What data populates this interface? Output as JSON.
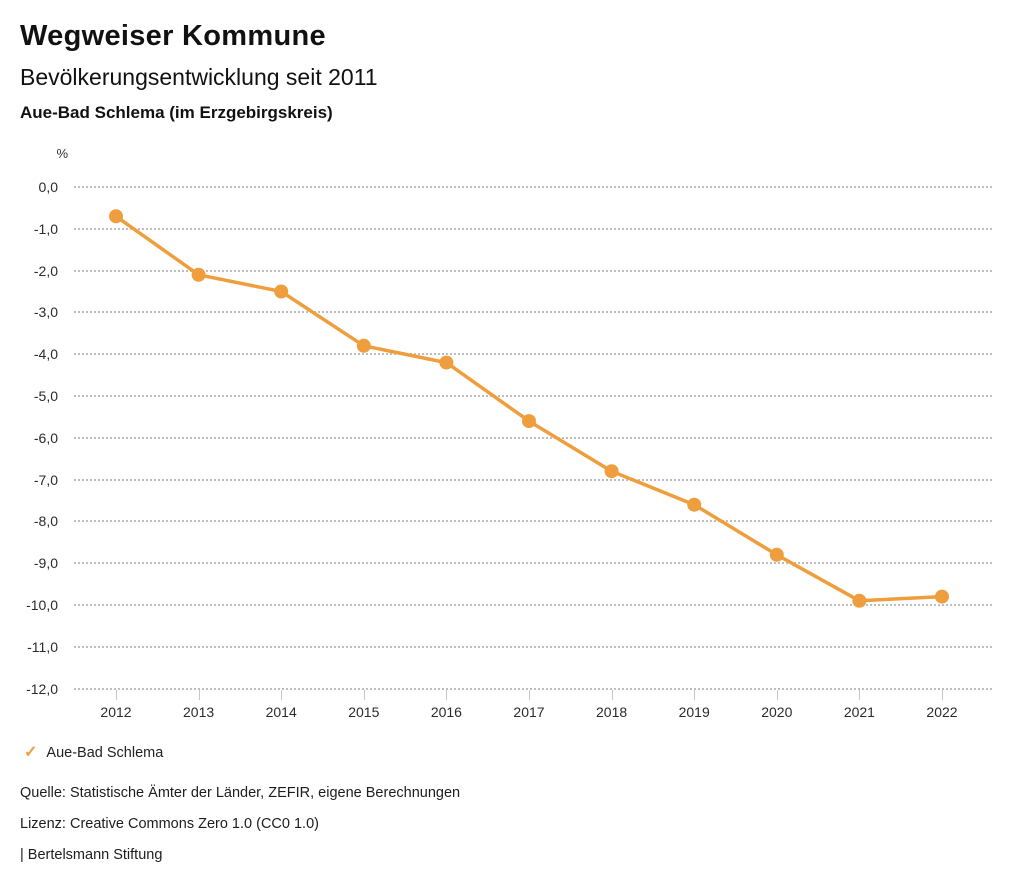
{
  "header": {
    "title": "Wegweiser Kommune",
    "subtitle": "Bevölkerungsentwicklung seit 2011",
    "region_line": "Aue-Bad Schlema (im Erzgebirgskreis)"
  },
  "chart_data": {
    "type": "line",
    "title": "Bevölkerungsentwicklung seit 2011",
    "subtitle": "Aue-Bad Schlema (im Erzgebirgskreis)",
    "unit_label": "%",
    "categories": [
      "2012",
      "2013",
      "2014",
      "2015",
      "2016",
      "2017",
      "2018",
      "2019",
      "2020",
      "2021",
      "2022"
    ],
    "series": [
      {
        "name": "Aue-Bad Schlema",
        "color": "#EF9E3E",
        "values": [
          -0.7,
          -2.1,
          -2.5,
          -3.8,
          -4.2,
          -5.6,
          -6.8,
          -7.6,
          -8.8,
          -9.9,
          -9.8
        ]
      }
    ],
    "ylim": [
      -12.0,
      0.0
    ],
    "ytick_step": 1.0,
    "ytick_labels": [
      "0,0",
      "-1,0",
      "-2,0",
      "-3,0",
      "-4,0",
      "-5,0",
      "-6,0",
      "-7,0",
      "-8,0",
      "-9,0",
      "-10,0",
      "-11,0",
      "-12,0"
    ],
    "grid": "horizontal-dotted",
    "legend_position": "bottom-left",
    "marker": "filled-circle"
  },
  "legend": {
    "items": [
      {
        "label": "Aue-Bad Schlema",
        "marker": "check-icon",
        "color": "#EF9E3E"
      }
    ]
  },
  "icons": {
    "check": "✓"
  },
  "footer": {
    "source": "Quelle: Statistische Ämter der Länder, ZEFIR, eigene Berechnungen",
    "license": "Lizenz: Creative Commons Zero 1.0 (CC0 1.0)",
    "attribution": "| Bertelsmann Stiftung"
  },
  "colors": {
    "accent": "#EF9E3E",
    "grid": "#bdbdbd",
    "tick": "#c6c6c6",
    "text": "#1a1a1a"
  }
}
